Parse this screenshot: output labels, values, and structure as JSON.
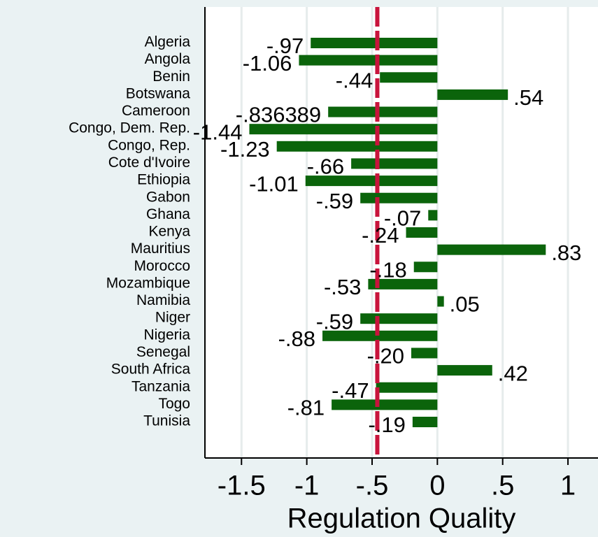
{
  "chart_data": {
    "type": "bar",
    "orientation": "horizontal",
    "x_label": "Regulation Quality",
    "categories": [
      "Algeria",
      "Angola",
      "Benin",
      "Botswana",
      "Cameroon",
      "Congo, Dem. Rep.",
      "Congo, Rep.",
      "Cote d'Ivoire",
      "Ethiopia",
      "Gabon",
      "Ghana",
      "Kenya",
      "Mauritius",
      "Morocco",
      "Mozambique",
      "Namibia",
      "Niger",
      "Nigeria",
      "Senegal",
      "South Africa",
      "Tanzania",
      "Togo",
      "Tunisia"
    ],
    "values": [
      -0.97,
      -1.06,
      -0.44,
      0.54,
      -0.836389,
      -1.44,
      -1.23,
      -0.66,
      -1.01,
      -0.59,
      -0.07,
      -0.24,
      0.83,
      -0.18,
      -0.53,
      0.05,
      -0.59,
      -0.88,
      -0.2,
      0.42,
      -0.47,
      -0.81,
      -0.19
    ],
    "value_labels": [
      "-.97",
      "-1.06",
      "-.44",
      ".54",
      "-.836389",
      "-1.44",
      "-1.23",
      "-.66",
      "-1.01",
      "-.59",
      "-.07",
      "-.24",
      ".83",
      "-.18",
      "-.53",
      ".05",
      "-.59",
      "-.88",
      "-.20",
      ".42",
      "-.47",
      "-.81",
      "-.19"
    ],
    "color": "#0b640b",
    "xlim": [
      -1.78,
      1.23
    ],
    "xticks": [
      -1.5,
      -1,
      {
        "value": -0.5,
        "label": "-.5"
      },
      0,
      {
        "value": 0.5,
        "label": ".5"
      },
      1
    ],
    "grid": true,
    "reference_line": {
      "value": -0.46,
      "color": "#c8143c"
    }
  }
}
